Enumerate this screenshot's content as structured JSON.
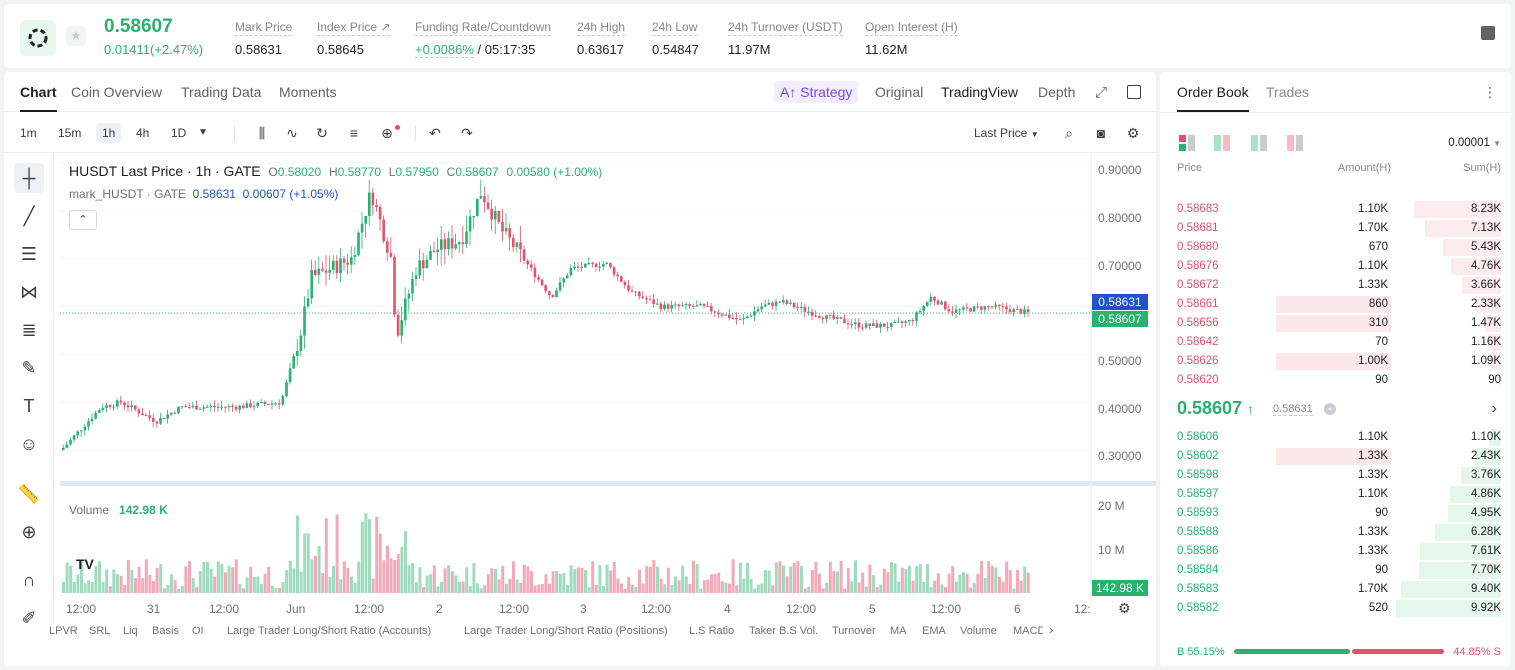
{
  "ticker": {
    "price": "0.58607",
    "change": "0.01411(+2.47%)",
    "stats": [
      {
        "label": "Mark Price",
        "value": "0.58631"
      },
      {
        "label": "Index Price ↗",
        "value": "0.58645"
      },
      {
        "label": "Funding Rate/Countdown",
        "rate": "+0.0086%",
        "countdown": "/ 05:17:35"
      },
      {
        "label": "24h High",
        "value": "0.63617"
      },
      {
        "label": "24h Low",
        "value": "0.54847"
      },
      {
        "label": "24h Turnover (USDT)",
        "value": "11.97M"
      },
      {
        "label": "Open Interest (H)",
        "value": "11.62M"
      }
    ]
  },
  "tabs": {
    "chart": "Chart",
    "overview": "Coin Overview",
    "trading_data": "Trading Data",
    "moments": "Moments",
    "strategy": "Strategy",
    "original": "Original",
    "tradingview": "TradingView",
    "depth": "Depth"
  },
  "timeframes": [
    "1m",
    "15m",
    "1h",
    "4h",
    "1D"
  ],
  "last_price_select": "Last Price",
  "legend": {
    "symbol": "HUSDT Last Price · 1h · GATE",
    "o": "0.58020",
    "h": "0.58770",
    "l": "0.57950",
    "c": "0.58607",
    "chg": "0.00580 (+1.00%)",
    "mark": "mark_HUSDT · GATE",
    "mark_price": "0.58631",
    "mark_chg": "0.00607 (+1.05%)"
  },
  "price_axis": [
    "0.90000",
    "0.80000",
    "0.70000",
    "0.60000",
    "0.50000",
    "0.40000",
    "0.30000"
  ],
  "price_labels": {
    "mark": "0.58631",
    "last": "0.58607"
  },
  "volume": {
    "label": "Volume",
    "value": "142.98 K",
    "axis": [
      "20 M",
      "10 M"
    ],
    "tag": "142.98 K"
  },
  "time_axis": [
    "12:00",
    "31",
    "12:00",
    "Jun",
    "12:00",
    "2",
    "12:00",
    "3",
    "12:00",
    "4",
    "12:00",
    "5",
    "12:00",
    "6",
    "12:"
  ],
  "indicators": [
    "LPVR",
    "SRL",
    "Liq",
    "Basis",
    "OI",
    "Large Trader Long/Short Ratio (Accounts)",
    "Large Trader Long/Short Ratio (Positions)",
    "L.S Ratio",
    "Taker B.S Vol.",
    "Turnover",
    "MA",
    "EMA",
    "Volume",
    "MACD"
  ],
  "orderbook": {
    "tabs": [
      "Order Book",
      "Trades"
    ],
    "precision": "0.00001",
    "headers": [
      "Price",
      "Amount(H)",
      "Sum(H)"
    ],
    "asks": [
      {
        "price": "0.58683",
        "amount": "1.10K",
        "sum": "8.23K",
        "depth": 0.83,
        "amt_hl": 0
      },
      {
        "price": "0.58681",
        "amount": "1.70K",
        "sum": "7.13K",
        "depth": 0.72,
        "amt_hl": 0
      },
      {
        "price": "0.58680",
        "amount": "670",
        "sum": "5.43K",
        "depth": 0.55,
        "amt_hl": 0
      },
      {
        "price": "0.58676",
        "amount": "1.10K",
        "sum": "4.76K",
        "depth": 0.48,
        "amt_hl": 0
      },
      {
        "price": "0.58672",
        "amount": "1.33K",
        "sum": "3.66K",
        "depth": 0.37,
        "amt_hl": 0
      },
      {
        "price": "0.58661",
        "amount": "860",
        "sum": "2.33K",
        "depth": 0.24,
        "amt_hl": 0.56
      },
      {
        "price": "0.58656",
        "amount": "310",
        "sum": "1.47K",
        "depth": 0.15,
        "amt_hl": 0.56
      },
      {
        "price": "0.58642",
        "amount": "70",
        "sum": "1.16K",
        "depth": 0.12,
        "amt_hl": 0
      },
      {
        "price": "0.58626",
        "amount": "1.00K",
        "sum": "1.09K",
        "depth": 0.11,
        "amt_hl": 0.56
      },
      {
        "price": "0.58620",
        "amount": "90",
        "sum": "90",
        "depth": 0.01,
        "amt_hl": 0
      }
    ],
    "mid": {
      "price": "0.58607",
      "arrow": "↑",
      "mark": "0.58631"
    },
    "bids": [
      {
        "price": "0.58606",
        "amount": "1.10K",
        "sum": "1.10K",
        "depth": 0.11,
        "amt_hl": 0
      },
      {
        "price": "0.58602",
        "amount": "1.33K",
        "sum": "2.43K",
        "depth": 0.25,
        "amt_hl": 0.56
      },
      {
        "price": "0.58598",
        "amount": "1.33K",
        "sum": "3.76K",
        "depth": 0.38,
        "amt_hl": 0
      },
      {
        "price": "0.58597",
        "amount": "1.10K",
        "sum": "4.86K",
        "depth": 0.49,
        "amt_hl": 0
      },
      {
        "price": "0.58593",
        "amount": "90",
        "sum": "4.95K",
        "depth": 0.5,
        "amt_hl": 0
      },
      {
        "price": "0.58588",
        "amount": "1.33K",
        "sum": "6.28K",
        "depth": 0.63,
        "amt_hl": 0
      },
      {
        "price": "0.58586",
        "amount": "1.33K",
        "sum": "7.61K",
        "depth": 0.77,
        "amt_hl": 0
      },
      {
        "price": "0.58584",
        "amount": "90",
        "sum": "7.70K",
        "depth": 0.78,
        "amt_hl": 0
      },
      {
        "price": "0.58583",
        "amount": "1.70K",
        "sum": "9.40K",
        "depth": 0.95,
        "amt_hl": 0
      },
      {
        "price": "0.58582",
        "amount": "520",
        "sum": "9.92K",
        "depth": 1.0,
        "amt_hl": 0
      }
    ],
    "buy_ratio": "B 55.15%",
    "sell_ratio": "44.85% S",
    "buy_fraction": 0.5515
  },
  "colors": {
    "up": "#27b36d",
    "down": "#e8506c",
    "mark": "#1f54c6"
  }
}
